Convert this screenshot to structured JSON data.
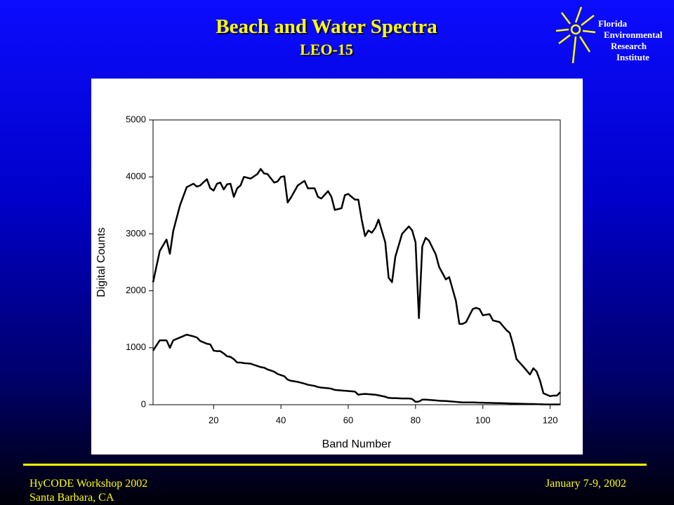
{
  "slide": {
    "title": "Beach and Water Spectra",
    "subtitle": "LEO-15",
    "logo": {
      "lines": [
        "Florida",
        "Environmental",
        "Research",
        "Institute"
      ]
    },
    "footer": {
      "left": [
        "HyCODE Workshop 2002",
        "Santa Barbara, CA"
      ],
      "right": "January 7-9, 2002"
    }
  },
  "chart_data": {
    "type": "line",
    "x_label": "Band Number",
    "y_label": "Digital Counts",
    "xlim": [
      2,
      123
    ],
    "ylim": [
      0,
      5000
    ],
    "xticks": [
      20,
      40,
      60,
      80,
      100,
      120
    ],
    "yticks": [
      0,
      1000,
      2000,
      3000,
      4000,
      5000
    ],
    "grid": false,
    "x": [
      2,
      4,
      6,
      7,
      8,
      10,
      12,
      14,
      15,
      16,
      18,
      19,
      20,
      21,
      22,
      23,
      24,
      25,
      26,
      27,
      28,
      29,
      31,
      33,
      34,
      35,
      36,
      38,
      39,
      40,
      41,
      42,
      43,
      45,
      47,
      48,
      50,
      51,
      52,
      54,
      55,
      56,
      58,
      59,
      60,
      61,
      62,
      63,
      64,
      65,
      66,
      67,
      68,
      69,
      71,
      72,
      73,
      74,
      76,
      78,
      79,
      80,
      81,
      82,
      83,
      84,
      86,
      87,
      89,
      90,
      92,
      93,
      94,
      95,
      97,
      98,
      99,
      100,
      101,
      102,
      103,
      105,
      107,
      108,
      109,
      110,
      112,
      114,
      115,
      116,
      117,
      118,
      120,
      121,
      122,
      123
    ],
    "series": [
      {
        "color": "#000000",
        "values": [
          2150,
          2700,
          2900,
          2650,
          3050,
          3500,
          3820,
          3880,
          3830,
          3850,
          3960,
          3800,
          3760,
          3880,
          3900,
          3780,
          3870,
          3880,
          3650,
          3800,
          3850,
          4000,
          3970,
          4050,
          4140,
          4060,
          4050,
          3900,
          3920,
          4000,
          4010,
          3550,
          3640,
          3850,
          3930,
          3800,
          3800,
          3650,
          3620,
          3750,
          3650,
          3420,
          3450,
          3680,
          3700,
          3650,
          3600,
          3600,
          3250,
          2960,
          3060,
          3020,
          3100,
          3250,
          2850,
          2230,
          2150,
          2600,
          3000,
          3130,
          3060,
          2850,
          1520,
          2780,
          2930,
          2880,
          2640,
          2420,
          2200,
          2240,
          1820,
          1420,
          1420,
          1450,
          1680,
          1700,
          1680,
          1570,
          1580,
          1590,
          1480,
          1450,
          1310,
          1260,
          1050,
          800,
          670,
          530,
          640,
          580,
          420,
          200,
          150,
          160,
          160,
          220
        ]
      },
      {
        "color": "#000000",
        "values": [
          950,
          1130,
          1130,
          1000,
          1130,
          1180,
          1230,
          1200,
          1180,
          1120,
          1070,
          1060,
          950,
          940,
          940,
          900,
          850,
          840,
          800,
          740,
          740,
          730,
          720,
          680,
          660,
          650,
          620,
          580,
          540,
          520,
          500,
          440,
          420,
          400,
          370,
          350,
          330,
          310,
          300,
          290,
          280,
          260,
          250,
          245,
          240,
          235,
          230,
          175,
          185,
          190,
          185,
          180,
          175,
          165,
          140,
          120,
          115,
          115,
          110,
          110,
          100,
          50,
          55,
          90,
          90,
          85,
          75,
          70,
          65,
          60,
          50,
          45,
          40,
          40,
          40,
          38,
          36,
          35,
          33,
          32,
          30,
          28,
          25,
          22,
          20,
          18,
          15,
          12,
          12,
          10,
          8,
          6,
          5,
          5,
          5,
          5
        ]
      }
    ]
  }
}
